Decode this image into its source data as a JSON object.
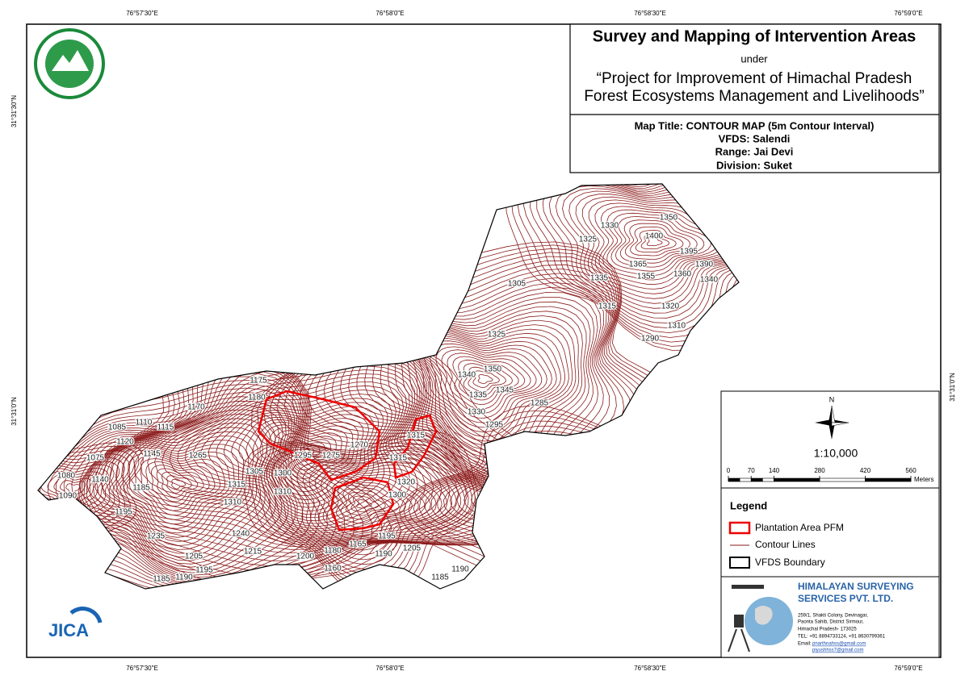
{
  "coordinates": {
    "top": [
      "76°57'30\"E",
      "76°58'0\"E",
      "76°58'30\"E",
      "76°59'0\"E"
    ],
    "bottom": [
      "76°57'30\"E",
      "76°58'0\"E",
      "76°58'30\"E",
      "76°59'0\"E"
    ],
    "left": [
      "31°31'30\"N",
      "31°31'0\"N"
    ],
    "right": [
      "31°31'0\"N"
    ]
  },
  "title_block": {
    "title": "Survey and Mapping of Intervention Areas",
    "under": "under",
    "project_line1": "“Project for Improvement of Himachal Pradesh",
    "project_line2": "Forest Ecosystems Management and Livelihoods”",
    "map_title": "Map Title: CONTOUR MAP (5m Contour Interval)",
    "vfds": "VFDS: Salendi",
    "range": "Range: Jai Devi",
    "division": "Division: Suket"
  },
  "north": "N",
  "scale": {
    "ratio": "1:10,000",
    "ticks": [
      0,
      70,
      140,
      280,
      420,
      560
    ],
    "unit": "Meters"
  },
  "legend": {
    "title": "Legend",
    "items": [
      "Plantation Area PFM",
      "Contour Lines",
      "VFDS Boundary"
    ]
  },
  "company": {
    "name_line1": "HIMALAYAN SURVEYING",
    "name_line2": "SERVICES PVT. LTD.",
    "address": [
      "259/1, Shakti Colony, Devinagar,",
      "Paonta Sahib, District Sirmour,",
      "Himachal Pradesh- 173025",
      "TEL: +91 8894733124, +91 8630799361"
    ],
    "email_label": "Email:",
    "emails": [
      "pnarthnahss@gmail.com",
      "piyushhss7@gmail.com"
    ]
  },
  "jica": "JICA",
  "contour_labels": [
    1350,
    1325,
    1330,
    1400,
    1395,
    1365,
    1390,
    1355,
    1360,
    1340,
    1335,
    1305,
    1315,
    1320,
    1310,
    1290,
    1325,
    1340,
    1350,
    1335,
    1345,
    1330,
    1285,
    1295,
    1315,
    1175,
    1180,
    1170,
    1115,
    1085,
    1110,
    1120,
    1145,
    1265,
    1295,
    1275,
    1270,
    1315,
    1305,
    1300,
    1315,
    1310,
    1320,
    1300,
    1080,
    1075,
    1140,
    1090,
    1185,
    1195,
    1310,
    1240,
    1235,
    1215,
    1205,
    1200,
    1180,
    1165,
    1195,
    1190,
    1205,
    1160,
    1185,
    1190,
    1185,
    1190,
    1195
  ]
}
